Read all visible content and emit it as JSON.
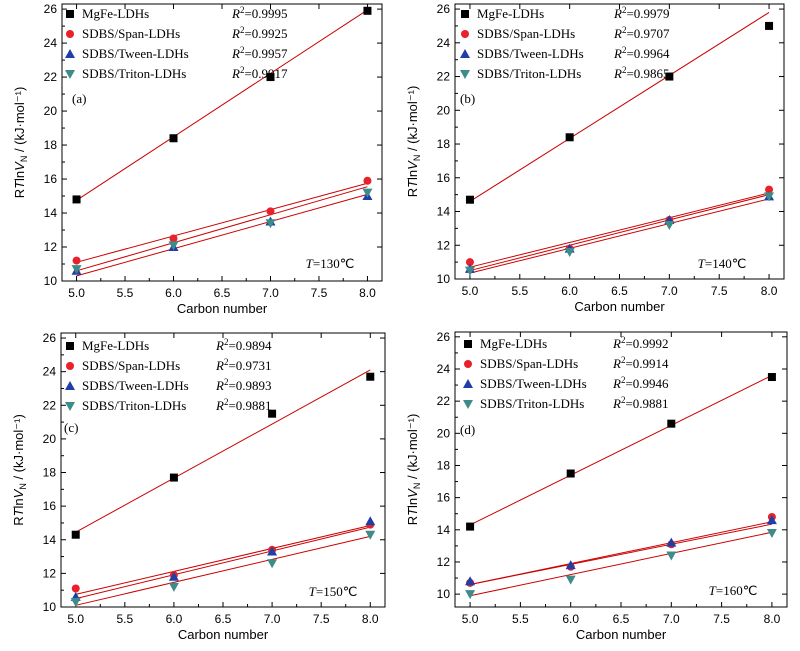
{
  "chart_data": [
    {
      "type": "scatter",
      "panel_label": "(a)",
      "temperature_label": "T=130℃",
      "xlabel": "Carbon number",
      "ylabel": "RTlnV_N / (kJ·mol⁻¹)",
      "xlim": [
        4.85,
        8.15
      ],
      "ylim": [
        10,
        26.3
      ],
      "xticks": [
        "5.0",
        "5.5",
        "6.0",
        "6.5",
        "7.0",
        "7.5",
        "8.0"
      ],
      "yticks": [
        "10",
        "12",
        "14",
        "16",
        "18",
        "20",
        "22",
        "24",
        "26"
      ],
      "x": [
        5,
        6,
        7,
        8
      ],
      "series": [
        {
          "name": "MgFe-LDHs",
          "r2": "0.9995",
          "marker": "square",
          "color": "#000000",
          "values": [
            14.8,
            18.4,
            22.0,
            25.9
          ],
          "fit": [
            14.75,
            25.95
          ]
        },
        {
          "name": "SDBS/Span-LDHs",
          "r2": "0.9925",
          "marker": "circle",
          "color": "#e8212a",
          "values": [
            11.2,
            12.5,
            14.1,
            15.9
          ],
          "fit": [
            11.1,
            15.75
          ]
        },
        {
          "name": "SDBS/Tween-LDHs",
          "r2": "0.9957",
          "marker": "triangle-up",
          "color": "#1f3fa6",
          "values": [
            10.6,
            12.0,
            13.5,
            15.0
          ],
          "fit": [
            10.6,
            15.55
          ]
        },
        {
          "name": "SDBS/Triton-LDHs",
          "r2": "0.9917",
          "marker": "triangle-down",
          "color": "#3d8c8a",
          "values": [
            10.7,
            12.1,
            13.4,
            15.2
          ],
          "fit": [
            10.3,
            15.1
          ]
        }
      ]
    },
    {
      "type": "scatter",
      "panel_label": "(b)",
      "temperature_label": "T=140℃",
      "xlabel": "Carbon number",
      "ylabel": "RTlnV_N / (kJ·mol⁻¹)",
      "xlim": [
        4.85,
        8.15
      ],
      "ylim": [
        10,
        26.3
      ],
      "xticks": [
        "5.0",
        "5.5",
        "6.0",
        "6.5",
        "7.0",
        "7.5",
        "8.0"
      ],
      "yticks": [
        "10",
        "12",
        "14",
        "16",
        "18",
        "20",
        "22",
        "24",
        "26"
      ],
      "x": [
        5,
        6,
        7,
        8
      ],
      "series": [
        {
          "name": "MgFe-LDHs",
          "r2": "0.9979",
          "marker": "square",
          "color": "#000000",
          "values": [
            14.7,
            18.4,
            22.0,
            25.0
          ],
          "fit": [
            14.6,
            25.8
          ]
        },
        {
          "name": "SDBS/Span-LDHs",
          "r2": "0.9707",
          "marker": "circle",
          "color": "#e8212a",
          "values": [
            11.0,
            11.8,
            13.5,
            15.3
          ],
          "fit": [
            10.7,
            15.1
          ]
        },
        {
          "name": "SDBS/Tween-LDHs",
          "r2": "0.9964",
          "marker": "triangle-up",
          "color": "#1f3fa6",
          "values": [
            10.6,
            11.8,
            13.5,
            14.9
          ],
          "fit": [
            10.5,
            15.0
          ]
        },
        {
          "name": "SDBS/Triton-LDHs",
          "r2": "0.9865",
          "marker": "triangle-down",
          "color": "#3d8c8a",
          "values": [
            10.5,
            11.6,
            13.2,
            14.9
          ],
          "fit": [
            10.35,
            14.75
          ]
        }
      ]
    },
    {
      "type": "scatter",
      "panel_label": "(c)",
      "temperature_label": "T=150℃",
      "xlabel": "Carbon number",
      "ylabel": "RTlnV_N / (kJ·mol⁻¹)",
      "xlim": [
        4.85,
        8.15
      ],
      "ylim": [
        10,
        26.3
      ],
      "xticks": [
        "5.0",
        "5.5",
        "6.0",
        "6.5",
        "7.0",
        "7.5",
        "8.0"
      ],
      "yticks": [
        "10",
        "12",
        "14",
        "16",
        "18",
        "20",
        "22",
        "24",
        "26"
      ],
      "x": [
        5,
        6,
        7,
        8
      ],
      "series": [
        {
          "name": "MgFe-LDHs",
          "r2": "0.9894",
          "marker": "square",
          "color": "#000000",
          "values": [
            14.3,
            17.7,
            21.5,
            23.7
          ],
          "fit": [
            14.45,
            24.1
          ]
        },
        {
          "name": "SDBS/Span-LDHs",
          "r2": "0.9731",
          "marker": "circle",
          "color": "#e8212a",
          "values": [
            11.1,
            11.9,
            13.4,
            14.9
          ],
          "fit": [
            10.75,
            14.85
          ]
        },
        {
          "name": "SDBS/Tween-LDHs",
          "r2": "0.9893",
          "marker": "triangle-up",
          "color": "#1f3fa6",
          "values": [
            10.6,
            11.8,
            13.3,
            15.1
          ],
          "fit": [
            10.5,
            14.75
          ]
        },
        {
          "name": "SDBS/Triton-LDHs",
          "r2": "0.9881",
          "marker": "triangle-down",
          "color": "#3d8c8a",
          "values": [
            10.3,
            11.2,
            12.6,
            14.3
          ],
          "fit": [
            10.1,
            14.2
          ]
        }
      ]
    },
    {
      "type": "scatter",
      "panel_label": "(d)",
      "temperature_label": "T=160℃",
      "xlabel": "Carbon number",
      "ylabel": "RTlnV_N / (kJ·mol⁻¹)",
      "xlim": [
        4.85,
        8.15
      ],
      "ylim": [
        9.2,
        26.3
      ],
      "xticks": [
        "5.0",
        "5.5",
        "6.0",
        "6.5",
        "7.0",
        "7.5",
        "8.0"
      ],
      "yticks": [
        "10",
        "12",
        "14",
        "16",
        "18",
        "20",
        "22",
        "24",
        "26"
      ],
      "x": [
        5,
        6,
        7,
        8
      ],
      "series": [
        {
          "name": "MgFe-LDHs",
          "r2": "0.9992",
          "marker": "square",
          "color": "#000000",
          "values": [
            14.2,
            17.5,
            20.6,
            23.5
          ],
          "fit": [
            14.3,
            23.6
          ]
        },
        {
          "name": "SDBS/Span-LDHs",
          "r2": "0.9914",
          "marker": "circle",
          "color": "#e8212a",
          "values": [
            10.7,
            11.7,
            13.1,
            14.8
          ],
          "fit": [
            10.6,
            14.5
          ]
        },
        {
          "name": "SDBS/Tween-LDHs",
          "r2": "0.9946",
          "marker": "triangle-up",
          "color": "#1f3fa6",
          "values": [
            10.8,
            11.8,
            13.2,
            14.6
          ],
          "fit": [
            10.6,
            14.35
          ]
        },
        {
          "name": "SDBS/Triton-LDHs",
          "r2": "0.9881",
          "marker": "triangle-down",
          "color": "#3d8c8a",
          "values": [
            10.0,
            10.9,
            12.4,
            13.8
          ],
          "fit": [
            9.9,
            13.85
          ]
        }
      ]
    }
  ]
}
